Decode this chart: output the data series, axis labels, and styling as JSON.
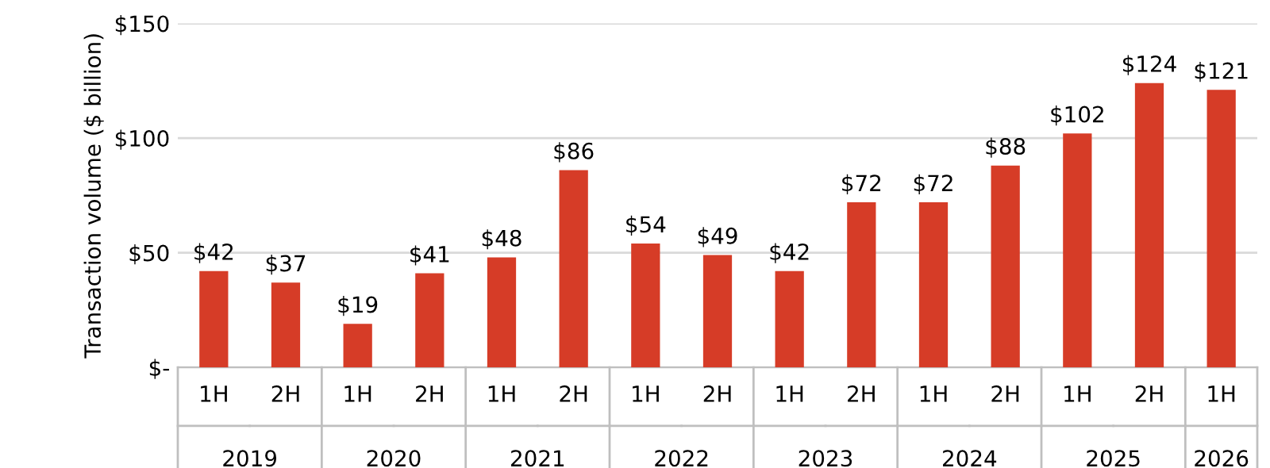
{
  "chart_data": {
    "type": "bar",
    "ylabel": "Transaction volume ($ billion)",
    "categories": [
      "1H",
      "2H",
      "1H",
      "2H",
      "1H",
      "2H",
      "1H",
      "2H",
      "1H",
      "2H",
      "1H",
      "2H",
      "1H",
      "2H",
      "1H"
    ],
    "values": [
      42,
      37,
      19,
      41,
      48,
      86,
      54,
      49,
      42,
      72,
      72,
      88,
      102,
      124,
      121
    ],
    "value_labels": [
      "$42",
      "$37",
      "$19",
      "$41",
      "$48",
      "$86",
      "$54",
      "$49",
      "$42",
      "$72",
      "$72",
      "$88",
      "$102",
      "$124",
      "$121"
    ],
    "color": "#d63c27",
    "ylim": [
      0,
      150
    ],
    "yticks": [
      {
        "value": 0,
        "label": "$-"
      },
      {
        "value": 50,
        "label": "$50"
      },
      {
        "value": 100,
        "label": "$100"
      },
      {
        "value": 150,
        "label": "$150"
      }
    ],
    "grid": "y",
    "annotations": [
      "2019",
      "2020",
      "2021",
      "2022",
      "2023",
      "2024",
      "2025",
      "2026"
    ]
  }
}
